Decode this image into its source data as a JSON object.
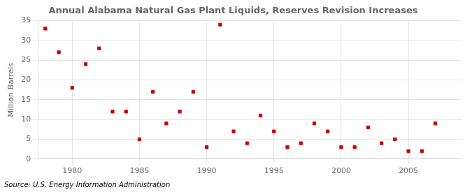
{
  "chart_data": {
    "type": "scatter",
    "title": "Annual Alabama Natural Gas Plant Liquids, Reserves Revision Increases",
    "ylabel": "Million Barrels",
    "annotations": [
      "Source: U.S. Energy Information Administration"
    ],
    "x": [
      1978,
      1979,
      1980,
      1981,
      1982,
      1983,
      1984,
      1985,
      1986,
      1987,
      1988,
      1989,
      1990,
      1991,
      1992,
      1993,
      1994,
      1995,
      1996,
      1997,
      1998,
      1999,
      2000,
      2001,
      2002,
      2003,
      2004,
      2005,
      2006,
      2007
    ],
    "values": [
      33,
      27,
      18,
      24,
      28,
      12,
      12,
      5,
      17,
      9,
      12,
      17,
      3,
      34,
      7,
      4,
      11,
      7,
      3,
      4,
      9,
      7,
      3,
      3,
      8,
      4,
      5,
      2,
      2,
      9
    ],
    "color": "#cc0000",
    "marker": "square",
    "xlim": [
      1977.5,
      2009
    ],
    "xticks": [
      1980,
      1985,
      1990,
      1995,
      2000,
      2005
    ],
    "ylim": [
      0,
      35
    ],
    "yticks": [
      0,
      5,
      10,
      15,
      20,
      25,
      30,
      35
    ],
    "grid": true
  }
}
